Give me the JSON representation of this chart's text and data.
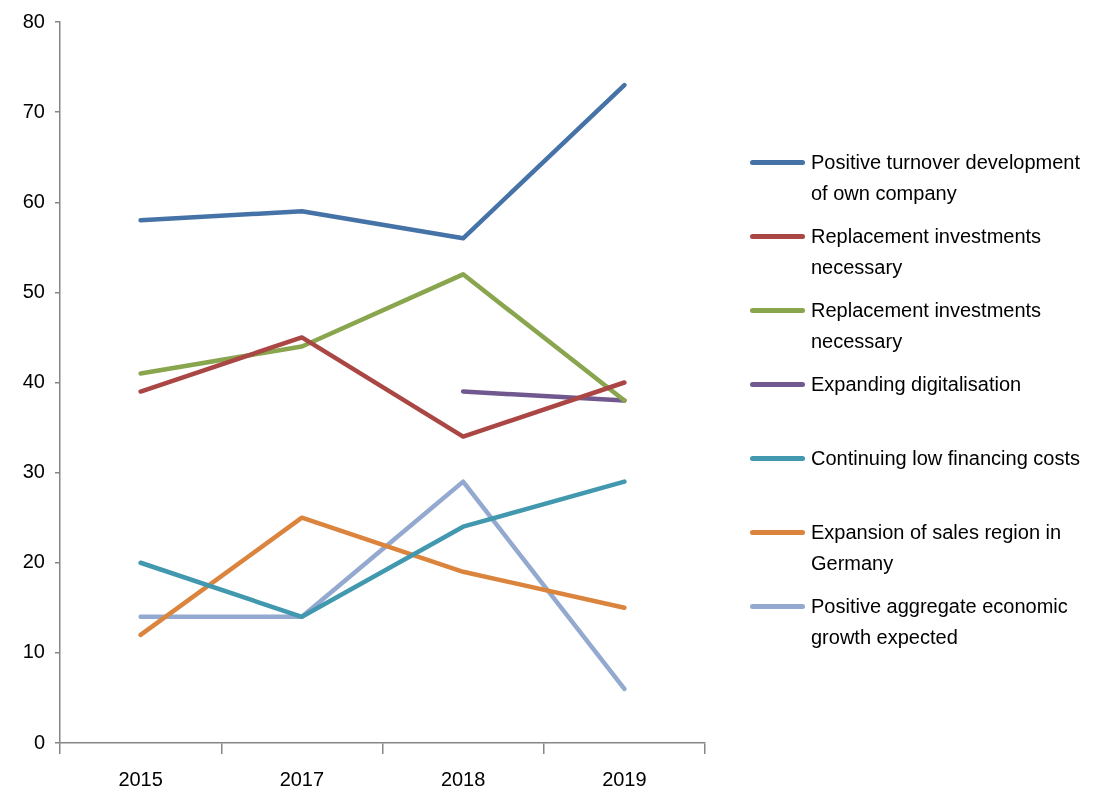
{
  "chart_data": {
    "type": "line",
    "categories": [
      "2015",
      "2017",
      "2018",
      "2019"
    ],
    "series": [
      {
        "name": "Positive turnover development of own company",
        "color": "#4572a7",
        "values": [
          58,
          59,
          56,
          73
        ]
      },
      {
        "name": "Replacement investments necessary",
        "color": "#aa4643",
        "values": [
          39,
          45,
          34,
          40
        ]
      },
      {
        "name": "Replacement investments necessary",
        "color": "#89a54e",
        "values": [
          41,
          44,
          52,
          38
        ]
      },
      {
        "name": "Expanding digitalisation",
        "color": "#71588f",
        "values": [
          null,
          null,
          39,
          38
        ]
      },
      {
        "name": "Continuing low financing costs",
        "color": "#4198af",
        "values": [
          20,
          14,
          24,
          29
        ]
      },
      {
        "name": "Expansion of sales region in Germany",
        "color": "#db843d",
        "values": [
          12,
          25,
          19,
          15
        ]
      },
      {
        "name": "Positive aggregate economic growth expected",
        "color": "#93a9cf",
        "values": [
          14,
          14,
          29,
          6
        ]
      }
    ],
    "ylim": [
      0,
      80
    ],
    "yticks": [
      0,
      10,
      20,
      30,
      40,
      50,
      60,
      70,
      80
    ],
    "legend": "right"
  }
}
